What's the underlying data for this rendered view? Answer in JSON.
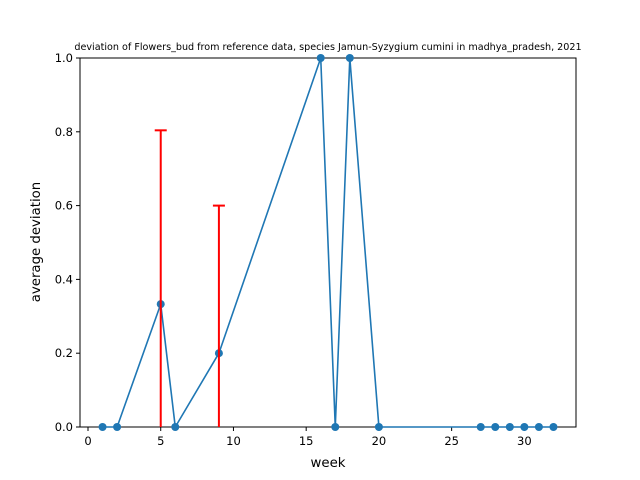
{
  "chart_data": {
    "type": "line",
    "title": "deviation of Flowers_bud from reference data, species Jamun-Syzygium cumini in madhya_pradesh, 2021",
    "xlabel": "week",
    "ylabel": "average deviation",
    "xlim": [
      -0.55,
      33.55
    ],
    "ylim": [
      0,
      1.0
    ],
    "xticks": [
      0,
      5,
      10,
      15,
      20,
      25,
      30
    ],
    "yticks": [
      0.0,
      0.2,
      0.4,
      0.6,
      0.8,
      1.0
    ],
    "grid": false,
    "legend": "none",
    "series": [
      {
        "color": "#1f77b4",
        "x": [
          1,
          2,
          5,
          6,
          9,
          16,
          17,
          18,
          20,
          27,
          28,
          29,
          30,
          31,
          32
        ],
        "y": [
          0,
          0,
          0.333,
          0,
          0.2,
          1.0,
          0,
          1.0,
          0,
          0,
          0,
          0,
          0,
          0,
          0
        ]
      }
    ],
    "errorbars": {
      "color": "#ff0000",
      "items": [
        {
          "x": 5,
          "y": 0.333,
          "upper": 0.804
        },
        {
          "x": 9,
          "y": 0.2,
          "upper": 0.6
        }
      ]
    }
  }
}
